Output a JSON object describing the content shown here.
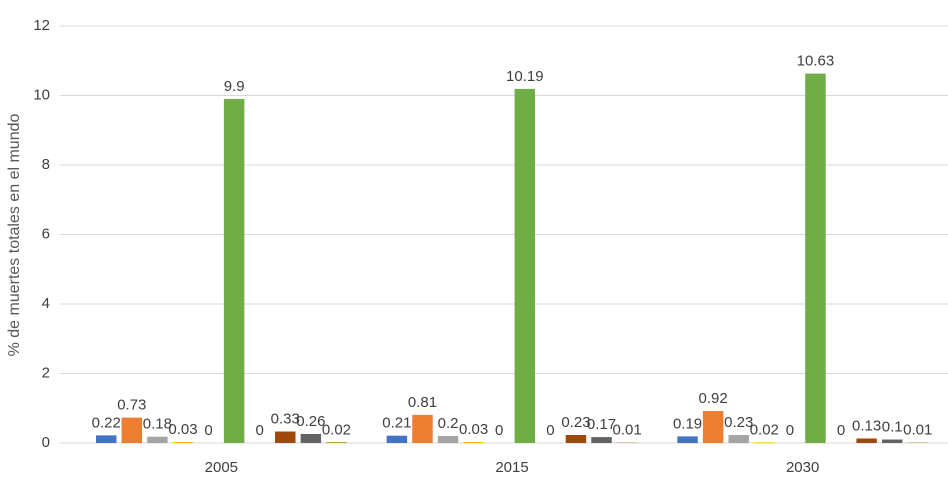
{
  "chart_data": {
    "type": "bar",
    "y_label": "% de muertes totales en el mundo",
    "categories": [
      "2005",
      "2015",
      "2030"
    ],
    "series": [
      {
        "color": "#4472c4",
        "values": [
          0.22,
          0.21,
          0.19
        ]
      },
      {
        "color": "#ed7d31",
        "values": [
          0.73,
          0.81,
          0.92
        ]
      },
      {
        "color": "#a5a5a5",
        "values": [
          0.18,
          0.2,
          0.23
        ]
      },
      {
        "color": "#ffc000",
        "values": [
          0.03,
          0.03,
          0.02
        ]
      },
      {
        "color": "#5b9bd5",
        "values": [
          0,
          0,
          0
        ]
      },
      {
        "color": "#70ad47",
        "values": [
          9.9,
          10.19,
          10.63
        ]
      },
      {
        "color": "#264478",
        "values": [
          0,
          0,
          0
        ]
      },
      {
        "color": "#9e480e",
        "values": [
          0.33,
          0.23,
          0.13
        ]
      },
      {
        "color": "#636363",
        "values": [
          0.26,
          0.17,
          0.1
        ]
      },
      {
        "color": "#997300",
        "values": [
          0.02,
          0.01,
          0.01
        ]
      }
    ],
    "ylim": [
      0,
      12
    ],
    "yticks": [
      0,
      2,
      4,
      6,
      8,
      10,
      12
    ],
    "grid": true
  }
}
